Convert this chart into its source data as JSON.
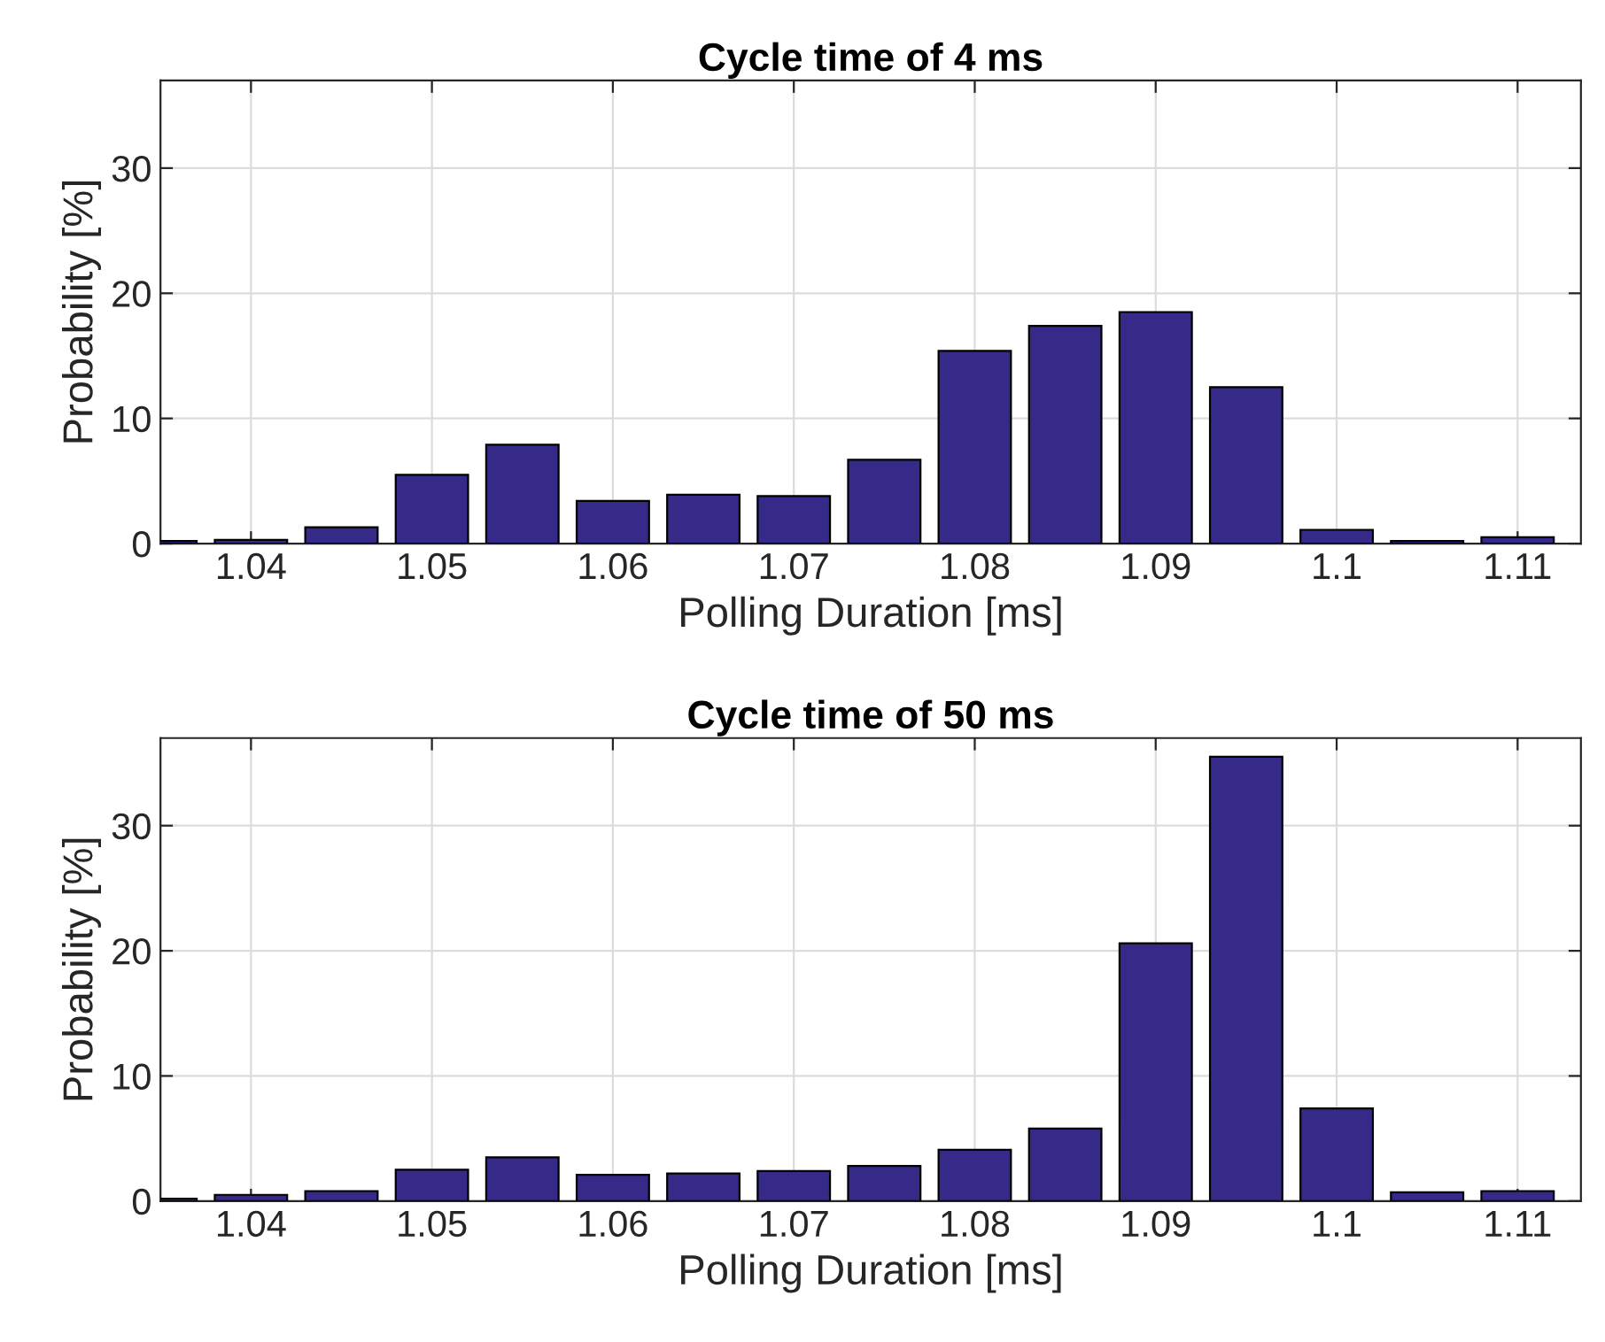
{
  "chart_data": [
    {
      "type": "histogram",
      "title": "Cycle time of 4 ms",
      "xlabel": "Polling Duration [ms]",
      "ylabel": "Probability [%]",
      "color": "#352a87",
      "bins": [
        1.0325,
        1.0375,
        1.0425,
        1.0475,
        1.0525,
        1.0575,
        1.0625,
        1.0675,
        1.0725,
        1.0775,
        1.0825,
        1.0875,
        1.0925,
        1.0975,
        1.1025,
        1.1075,
        1.1125
      ],
      "values": [
        0.2,
        0.3,
        1.3,
        5.5,
        7.9,
        3.4,
        3.9,
        3.8,
        6.7,
        15.4,
        17.4,
        18.5,
        12.5,
        1.1,
        0.2,
        0.5
      ],
      "xlim": [
        1.035,
        1.1135
      ],
      "xticks": [
        1.04,
        1.05,
        1.06,
        1.07,
        1.08,
        1.09,
        1.1,
        1.11
      ],
      "ylim": [
        0,
        37
      ],
      "yticks": [
        0,
        10,
        20,
        30
      ],
      "grid": true
    },
    {
      "type": "histogram",
      "title": "Cycle time of 50 ms",
      "xlabel": "Polling Duration [ms]",
      "ylabel": "Probability [%]",
      "color": "#352a87",
      "bins": [
        1.0325,
        1.0375,
        1.0425,
        1.0475,
        1.0525,
        1.0575,
        1.0625,
        1.0675,
        1.0725,
        1.0775,
        1.0825,
        1.0875,
        1.0925,
        1.0975,
        1.1025,
        1.1075,
        1.1125
      ],
      "values": [
        0.2,
        0.5,
        0.8,
        2.5,
        3.5,
        2.1,
        2.2,
        2.4,
        2.8,
        4.1,
        5.8,
        20.6,
        35.5,
        7.4,
        0.7,
        0.8
      ],
      "xlim": [
        1.035,
        1.1135
      ],
      "xticks": [
        1.04,
        1.05,
        1.06,
        1.07,
        1.08,
        1.09,
        1.1,
        1.11
      ],
      "ylim": [
        0,
        37
      ],
      "yticks": [
        0,
        10,
        20,
        30
      ],
      "grid": true
    }
  ]
}
